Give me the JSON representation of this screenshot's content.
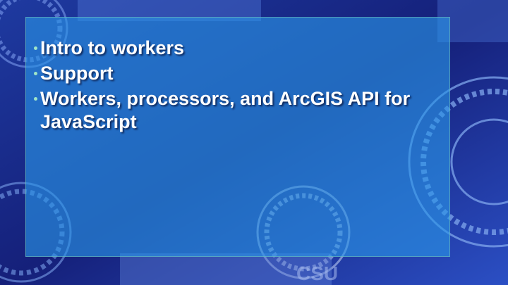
{
  "slide": {
    "bullets": [
      {
        "text": "Intro to workers"
      },
      {
        "text": "Support"
      },
      {
        "text": "Workers, processors, and ArcGIS API for JavaScript"
      }
    ],
    "background": {
      "engraving": "CSU",
      "base_color": "#1b2a7a",
      "panel_color": "#2a96e8",
      "bullet_color": "#9fe6c8"
    }
  }
}
